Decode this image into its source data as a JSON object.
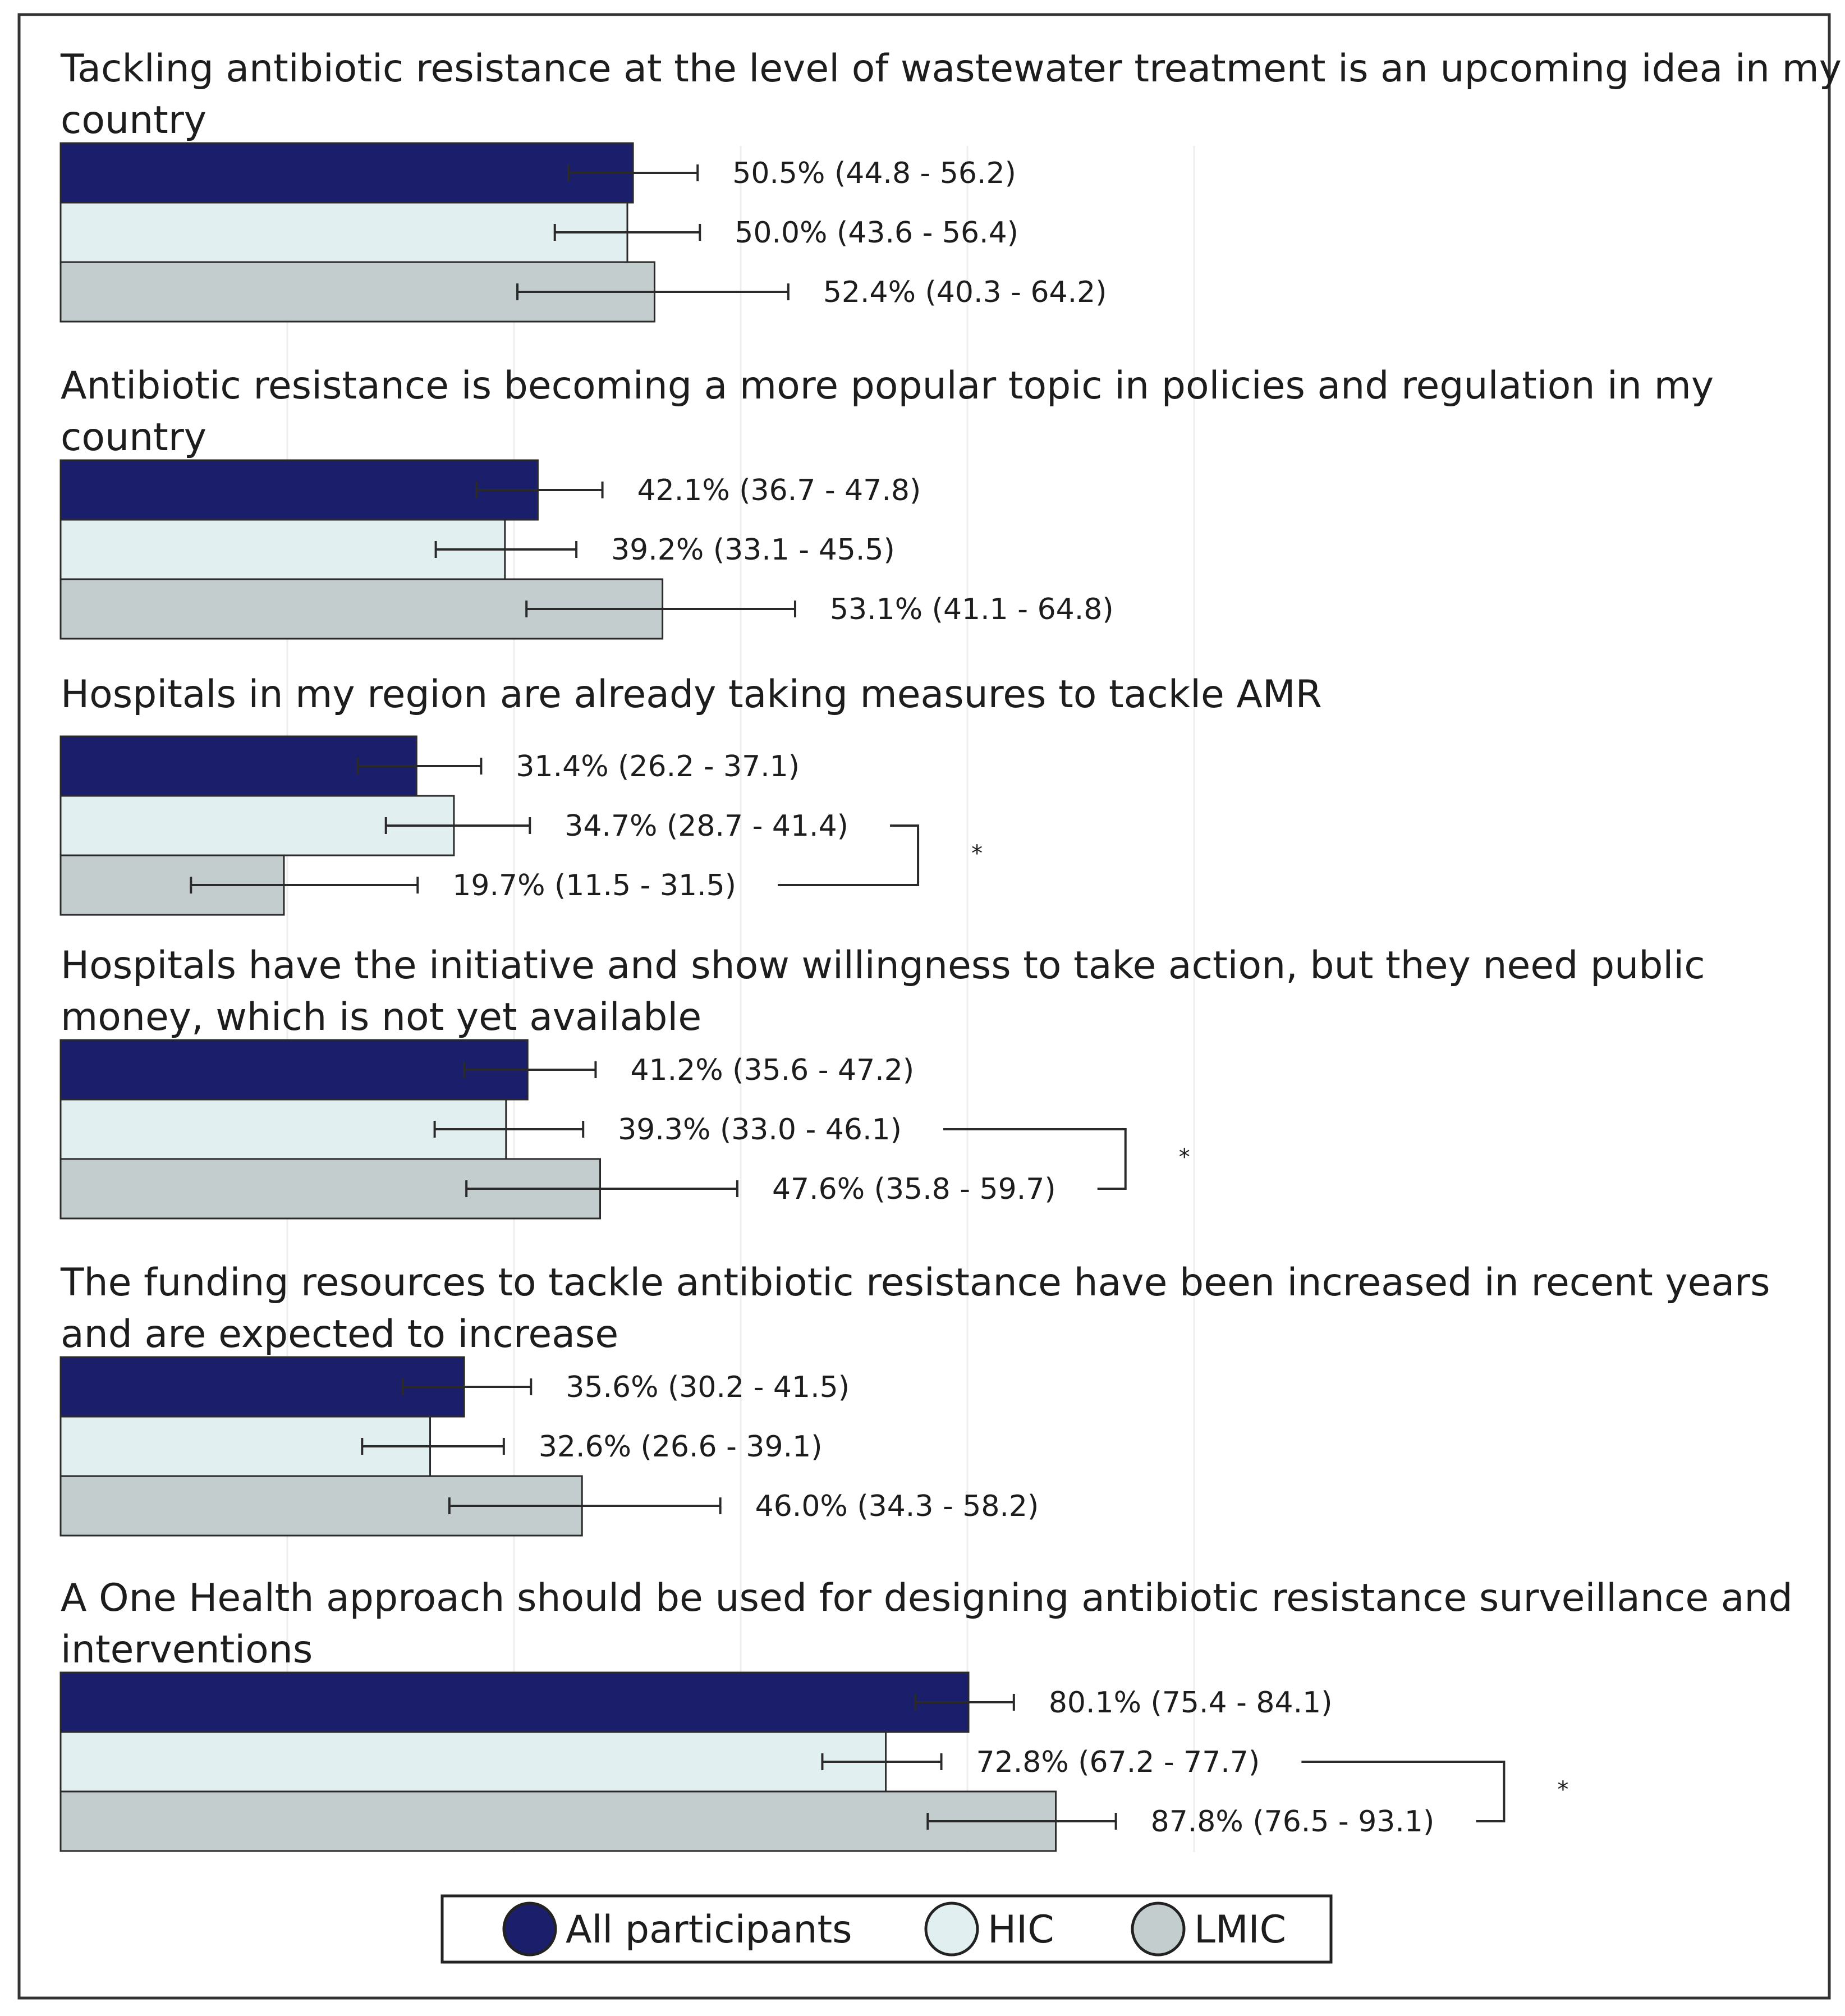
{
  "colors": {
    "all_participants": "#1b1f6b",
    "hic": "#e2eff0",
    "lmic": "#c3cdcd",
    "outline": "#2a2a2a",
    "frame": "#333333",
    "grid": "#eeeeee"
  },
  "chart_data": {
    "type": "bar",
    "orientation": "horizontal",
    "unit": "%",
    "xlim": [
      0,
      100
    ],
    "grid": true,
    "series": [
      {
        "name": "All participants",
        "color_key": "all_participants"
      },
      {
        "name": "HIC",
        "color_key": "hic"
      },
      {
        "name": "LMIC",
        "color_key": "lmic"
      }
    ],
    "legend": {
      "position": "bottom-center",
      "items": [
        "All participants",
        "HIC",
        "LMIC"
      ]
    },
    "panels": [
      {
        "title_lines": [
          "Tackling antibiotic resistance at the level of wastewater treatment is an upcoming idea in my",
          "country"
        ],
        "bars": [
          {
            "series": "All participants",
            "value": 50.5,
            "ci": [
              44.8,
              56.2
            ],
            "label": "50.5% (44.8 - 56.2)"
          },
          {
            "series": "HIC",
            "value": 50.0,
            "ci": [
              43.6,
              56.4
            ],
            "label": "50.0% (43.6 - 56.4)"
          },
          {
            "series": "LMIC",
            "value": 52.4,
            "ci": [
              40.3,
              64.2
            ],
            "label": "52.4% (40.3 - 64.2)"
          }
        ],
        "significance": null
      },
      {
        "title_lines": [
          "Antibiotic resistance is becoming a more popular topic in policies and regulation in my",
          "country"
        ],
        "bars": [
          {
            "series": "All participants",
            "value": 42.1,
            "ci": [
              36.7,
              47.8
            ],
            "label": "42.1% (36.7 - 47.8)"
          },
          {
            "series": "HIC",
            "value": 39.2,
            "ci": [
              33.1,
              45.5
            ],
            "label": "39.2% (33.1 - 45.5)"
          },
          {
            "series": "LMIC",
            "value": 53.1,
            "ci": [
              41.1,
              64.8
            ],
            "label": "53.1% (41.1 - 64.8)"
          }
        ],
        "significance": null
      },
      {
        "title_lines": [
          "Hospitals in my region are already taking measures to tackle AMR"
        ],
        "bars": [
          {
            "series": "All participants",
            "value": 31.4,
            "ci": [
              26.2,
              37.1
            ],
            "label": "31.4% (26.2 - 37.1)"
          },
          {
            "series": "HIC",
            "value": 34.7,
            "ci": [
              28.7,
              41.4
            ],
            "label": "34.7% (28.7 - 41.4)"
          },
          {
            "series": "LMIC",
            "value": 19.7,
            "ci": [
              11.5,
              31.5
            ],
            "label": "19.7% (11.5 - 31.5)"
          }
        ],
        "significance": {
          "between": [
            "HIC",
            "LMIC"
          ],
          "mark": "*"
        }
      },
      {
        "title_lines": [
          "Hospitals have the initiative and show willingness to take action, but they need public",
          "money, which is not yet available"
        ],
        "bars": [
          {
            "series": "All participants",
            "value": 41.2,
            "ci": [
              35.6,
              47.2
            ],
            "label": "41.2% (35.6 - 47.2)"
          },
          {
            "series": "HIC",
            "value": 39.3,
            "ci": [
              33.0,
              46.1
            ],
            "label": "39.3% (33.0 - 46.1)"
          },
          {
            "series": "LMIC",
            "value": 47.6,
            "ci": [
              35.8,
              59.7
            ],
            "label": "47.6% (35.8 - 59.7)"
          }
        ],
        "significance": {
          "between": [
            "HIC",
            "LMIC"
          ],
          "mark": "*"
        }
      },
      {
        "title_lines": [
          "The funding resources to tackle antibiotic resistance have been increased in recent years",
          "and are expected to increase"
        ],
        "bars": [
          {
            "series": "All participants",
            "value": 35.6,
            "ci": [
              30.2,
              41.5
            ],
            "label": "35.6% (30.2 - 41.5)"
          },
          {
            "series": "HIC",
            "value": 32.6,
            "ci": [
              26.6,
              39.1
            ],
            "label": "32.6% (26.6 - 39.1)"
          },
          {
            "series": "LMIC",
            "value": 46.0,
            "ci": [
              34.3,
              58.2
            ],
            "label": "46.0% (34.3 - 58.2)"
          }
        ],
        "significance": null
      },
      {
        "title_lines": [
          "A One Health approach should be used for designing antibiotic resistance surveillance and",
          "interventions"
        ],
        "bars": [
          {
            "series": "All participants",
            "value": 80.1,
            "ci": [
              75.4,
              84.1
            ],
            "label": "80.1% (75.4 - 84.1)"
          },
          {
            "series": "HIC",
            "value": 72.8,
            "ci": [
              67.2,
              77.7
            ],
            "label": "72.8% (67.2 - 77.7)"
          },
          {
            "series": "LMIC",
            "value": 87.8,
            "ci": [
              76.5,
              93.1
            ],
            "label": "87.8% (76.5 - 93.1)"
          }
        ],
        "significance": {
          "between": [
            "HIC",
            "LMIC"
          ],
          "mark": "*"
        }
      }
    ]
  }
}
